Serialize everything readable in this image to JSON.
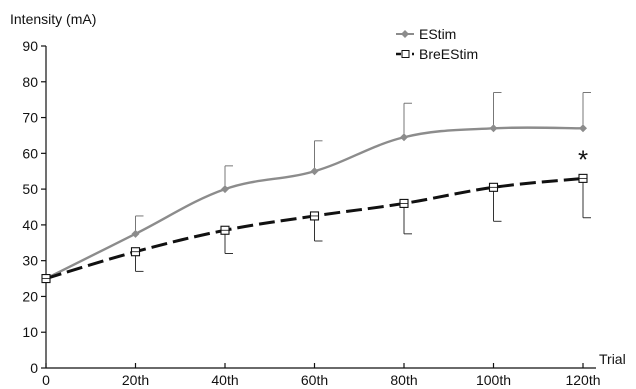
{
  "chart_data": {
    "type": "line",
    "title": "",
    "xlabel": "Trial",
    "ylabel": "Intensity (mA)",
    "categories": [
      "0",
      "20th",
      "40th",
      "60th",
      "80th",
      "100th",
      "120th"
    ],
    "y_ticks": [
      "0",
      "10",
      "20",
      "30",
      "40",
      "50",
      "60",
      "70",
      "80",
      "90"
    ],
    "ylim": [
      0,
      90
    ],
    "grid": false,
    "legend_position": "top-right",
    "series": [
      {
        "name": "EStim",
        "values": [
          25,
          37.5,
          50,
          55,
          64.5,
          67,
          67
        ],
        "error_upper": [
          25,
          42.5,
          56.5,
          63.5,
          74,
          77,
          77
        ],
        "color": "#8c8c8c",
        "line_style": "solid",
        "marker": "diamond-filled"
      },
      {
        "name": "BreEStim",
        "values": [
          25,
          32.5,
          38.5,
          42.5,
          46,
          50.5,
          53
        ],
        "error_lower": [
          25,
          27,
          32,
          35.5,
          37.5,
          41,
          42
        ],
        "color": "#111111",
        "line_style": "dashed",
        "marker": "square-open"
      }
    ],
    "annotations": [
      {
        "text": "*",
        "category": "120th",
        "y": 58
      }
    ]
  }
}
